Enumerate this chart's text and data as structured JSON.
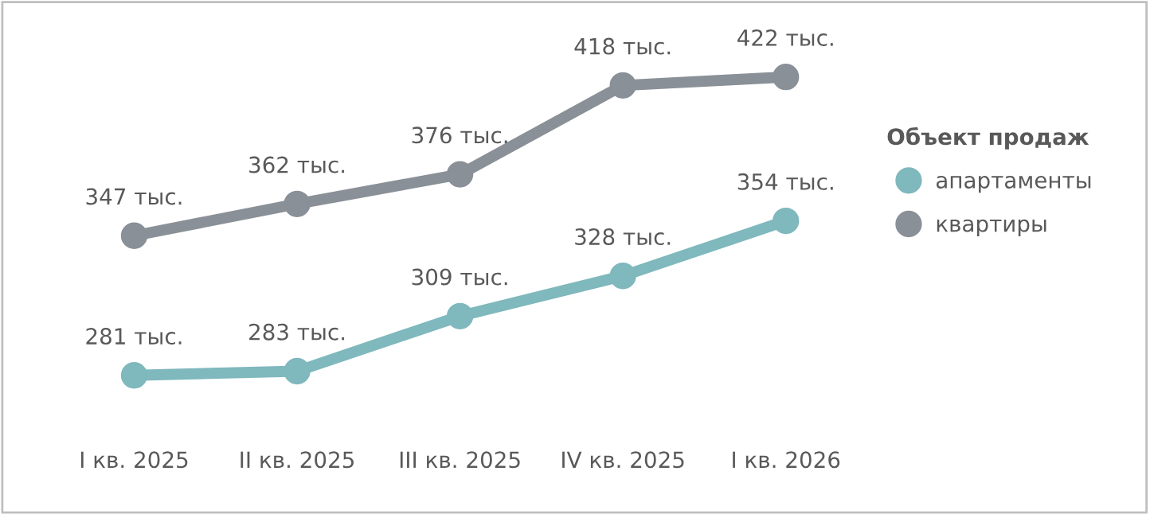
{
  "chart_data": {
    "type": "line",
    "categories": [
      "I кв. 2025",
      "II кв. 2025",
      "III кв. 2025",
      "IV кв. 2025",
      "I кв. 2026"
    ],
    "legend_title": "Объект продаж",
    "legend": "right",
    "marker": "circle",
    "line_style": "solid",
    "grid": false,
    "series": [
      {
        "name": "апартаменты",
        "color": "#7fb8bd",
        "values": [
          281,
          283,
          309,
          328,
          354
        ],
        "value_labels": [
          "281 тыс.",
          "283 тыс.",
          "309 тыс.",
          "328 тыс.",
          "354 тыс."
        ]
      },
      {
        "name": "квартиры",
        "color": "#8a9097",
        "values": [
          347,
          362,
          376,
          418,
          422
        ],
        "value_labels": [
          "347 тыс.",
          "362 тыс.",
          "376 тыс.",
          "418 тыс.",
          "422 тыс."
        ]
      }
    ]
  }
}
